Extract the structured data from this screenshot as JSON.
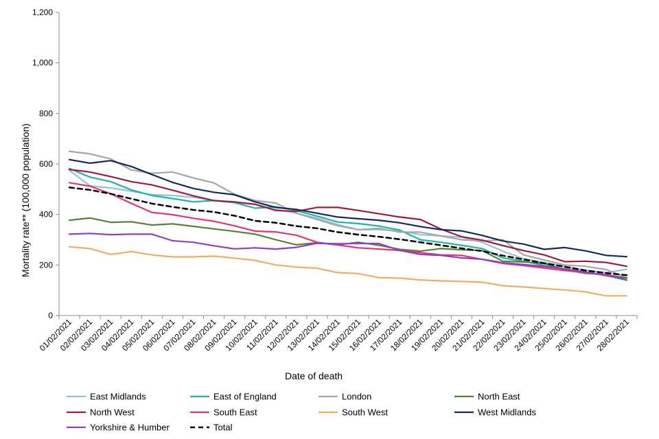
{
  "chart_data": {
    "type": "line",
    "title": "",
    "xlabel": "Date of death",
    "ylabel": "Mortality rate** (100,000 population)",
    "ylim": [
      0,
      1200
    ],
    "y_ticks": [
      0,
      200,
      400,
      600,
      800,
      1000,
      1200
    ],
    "y_tick_labels": [
      "0",
      "200",
      "400",
      "600",
      "800",
      "1,000",
      "1,200"
    ],
    "grid": false,
    "legend_position": "bottom",
    "categories": [
      "01/02/2021",
      "02/02/2021",
      "03/02/2021",
      "04/02/2021",
      "05/02/2021",
      "06/02/2021",
      "07/02/2021",
      "08/02/2021",
      "09/02/2021",
      "10/02/2021",
      "11/02/2021",
      "12/02/2021",
      "13/02/2021",
      "14/02/2021",
      "15/02/2021",
      "16/02/2021",
      "17/02/2021",
      "18/02/2021",
      "19/02/2021",
      "20/02/2021",
      "21/02/2021",
      "22/02/2021",
      "23/02/2021",
      "24/02/2021",
      "25/02/2021",
      "26/02/2021",
      "27/02/2021",
      "28/02/2021"
    ],
    "series": [
      {
        "name": "East Midlands",
        "color": "#93c0dc",
        "dashed": false,
        "values": [
          575,
          513,
          505,
          492,
          478,
          475,
          468,
          455,
          448,
          440,
          420,
          405,
          385,
          360,
          340,
          340,
          335,
          320,
          315,
          310,
          290,
          255,
          225,
          210,
          195,
          180,
          170,
          183
        ]
      },
      {
        "name": "East of England",
        "color": "#1cb3a5",
        "dashed": false,
        "values": [
          582,
          548,
          530,
          497,
          475,
          463,
          450,
          455,
          447,
          425,
          430,
          415,
          393,
          370,
          364,
          354,
          338,
          300,
          290,
          278,
          265,
          228,
          215,
          198,
          185,
          172,
          158,
          140
        ]
      },
      {
        "name": "London",
        "color": "#a6a6a6",
        "dashed": false,
        "values": [
          650,
          640,
          620,
          576,
          563,
          568,
          545,
          525,
          480,
          455,
          445,
          405,
          380,
          355,
          340,
          345,
          330,
          330,
          315,
          300,
          295,
          300,
          240,
          220,
          200,
          195,
          182,
          150
        ]
      },
      {
        "name": "North East",
        "color": "#548235",
        "dashed": false,
        "values": [
          377,
          386,
          369,
          371,
          358,
          363,
          353,
          343,
          333,
          322,
          300,
          280,
          288,
          280,
          290,
          278,
          262,
          255,
          265,
          260,
          257,
          215,
          212,
          206,
          182,
          167,
          162,
          140
        ]
      },
      {
        "name": "North West",
        "color": "#9b1c38",
        "dashed": false,
        "values": [
          578,
          568,
          550,
          530,
          517,
          496,
          474,
          455,
          450,
          440,
          416,
          412,
          428,
          428,
          416,
          403,
          390,
          380,
          342,
          312,
          298,
          277,
          257,
          240,
          213,
          215,
          210,
          195
        ]
      },
      {
        "name": "South East",
        "color": "#e6346e",
        "dashed": false,
        "values": [
          526,
          512,
          482,
          444,
          408,
          399,
          385,
          373,
          355,
          334,
          331,
          318,
          290,
          279,
          268,
          263,
          258,
          249,
          240,
          238,
          222,
          206,
          198,
          188,
          178,
          170,
          162,
          148
        ]
      },
      {
        "name": "South West",
        "color": "#f0ad61",
        "dashed": false,
        "values": [
          272,
          265,
          242,
          253,
          240,
          232,
          232,
          235,
          227,
          218,
          200,
          192,
          187,
          170,
          166,
          150,
          148,
          141,
          137,
          135,
          132,
          118,
          113,
          107,
          101,
          94,
          78,
          78
        ]
      },
      {
        "name": "West Midlands",
        "color": "#14285f",
        "dashed": false,
        "values": [
          617,
          603,
          613,
          590,
          558,
          527,
          503,
          488,
          478,
          450,
          428,
          420,
          405,
          390,
          383,
          377,
          367,
          352,
          340,
          335,
          317,
          295,
          283,
          262,
          269,
          256,
          238,
          233
        ]
      },
      {
        "name": "Yorkshire & Humber",
        "color": "#8b3fc4",
        "dashed": false,
        "values": [
          322,
          325,
          320,
          322,
          322,
          296,
          290,
          276,
          264,
          268,
          263,
          270,
          286,
          284,
          285,
          285,
          258,
          242,
          238,
          228,
          223,
          209,
          202,
          194,
          185,
          172,
          158,
          148
        ]
      },
      {
        "name": "Total",
        "color": "#000000",
        "dashed": true,
        "values": [
          507,
          497,
          482,
          462,
          443,
          430,
          418,
          410,
          395,
          375,
          367,
          354,
          345,
          330,
          320,
          312,
          302,
          290,
          278,
          266,
          255,
          237,
          222,
          207,
          193,
          178,
          168,
          160
        ]
      }
    ]
  }
}
